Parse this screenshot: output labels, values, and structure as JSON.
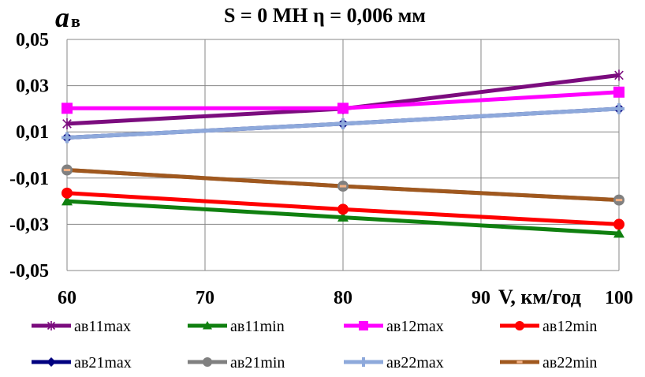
{
  "chart_data": {
    "type": "line",
    "title": "S = 0 МН  η = 0,006 мм",
    "ylabel_main": "a",
    "ylabel_sub": "в",
    "xlabel": "V, км/год",
    "x": [
      60,
      80,
      100
    ],
    "xlim": [
      60,
      100
    ],
    "ylim": [
      -0.05,
      0.05
    ],
    "x_ticks": [
      "60",
      "70",
      "80",
      "90",
      "100"
    ],
    "y_ticks": [
      "0,05",
      "0,03",
      "0,01",
      "-0,01",
      "-0,03",
      "-0,05"
    ],
    "series": [
      {
        "name": "ав11max",
        "values": [
          0.0135,
          0.02,
          0.0345
        ],
        "color": "#7B0C7E",
        "marker": "star"
      },
      {
        "name": "ав11min",
        "values": [
          -0.02,
          -0.027,
          -0.034
        ],
        "color": "#108010",
        "marker": "triangle"
      },
      {
        "name": "ав12max",
        "values": [
          0.0202,
          0.0202,
          0.0272
        ],
        "color": "#FF00FF",
        "marker": "square"
      },
      {
        "name": "ав12min",
        "values": [
          -0.0165,
          -0.0235,
          -0.03
        ],
        "color": "#FF0000",
        "marker": "circle"
      },
      {
        "name": "ав21max",
        "values": [
          0.0075,
          0.0135,
          0.02
        ],
        "color": "#000080",
        "marker": "diamond"
      },
      {
        "name": "ав21min",
        "values": [
          -0.0065,
          -0.0135,
          -0.0195
        ],
        "color": "#808080",
        "marker": "circle"
      },
      {
        "name": "ав22max",
        "values": [
          0.0075,
          0.0135,
          0.02
        ],
        "color": "#8EA9DB",
        "marker": "plus"
      },
      {
        "name": "ав22min",
        "values": [
          -0.0065,
          -0.0135,
          -0.0195
        ],
        "color": "#A0581E",
        "marker": "dash"
      }
    ],
    "legend": "bottom"
  }
}
